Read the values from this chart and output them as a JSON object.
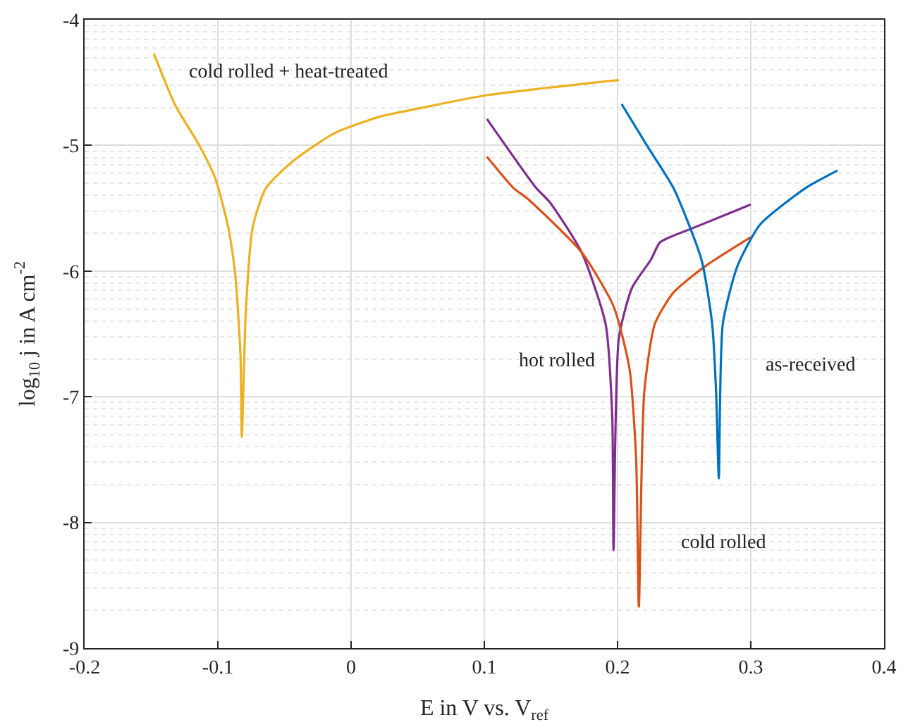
{
  "chart_data": {
    "type": "line",
    "xlabel": "E in V vs. V$_{ref}$",
    "ylabel": "log$_{10}$ j in A cm$^{-2}$",
    "xlim": [
      -0.2,
      0.4
    ],
    "xticks": [
      -0.2,
      -0.1,
      0,
      0.1,
      0.2,
      0.3,
      0.4
    ],
    "ylim": [
      -9,
      -4
    ],
    "yticks": [
      -9,
      -8,
      -7,
      -6,
      -5,
      -4
    ],
    "grid": true,
    "legend": false,
    "marker": "none",
    "line_style": "solid",
    "series": [
      {
        "name": "cold rolled + heat-treated",
        "color": "#edb120",
        "x": [
          -0.148,
          -0.132,
          -0.115,
          -0.102,
          -0.092,
          -0.087,
          -0.083,
          -0.082,
          -0.079,
          -0.074,
          -0.064,
          -0.043,
          -0.012,
          0.022,
          0.049,
          0.102,
          0.201
        ],
        "values": [
          -4.27,
          -4.68,
          -4.98,
          -5.26,
          -5.66,
          -6.02,
          -6.67,
          -7.32,
          -6.32,
          -5.66,
          -5.34,
          -5.12,
          -4.9,
          -4.77,
          -4.71,
          -4.6,
          -4.48
        ]
      },
      {
        "name": "hot rolled",
        "color": "#7e2f8e",
        "x": [
          0.102,
          0.139,
          0.149,
          0.173,
          0.191,
          0.196,
          0.197,
          0.201,
          0.211,
          0.225,
          0.232,
          0.256,
          0.3
        ],
        "values": [
          -4.79,
          -5.34,
          -5.45,
          -5.85,
          -6.42,
          -7.15,
          -8.22,
          -6.53,
          -6.13,
          -5.91,
          -5.77,
          -5.66,
          -5.47
        ]
      },
      {
        "name": "cold rolled",
        "color": "#d95319",
        "x": [
          0.102,
          0.122,
          0.132,
          0.173,
          0.197,
          0.209,
          0.214,
          0.216,
          0.22,
          0.228,
          0.242,
          0.266,
          0.3
        ],
        "values": [
          -5.09,
          -5.34,
          -5.42,
          -5.85,
          -6.28,
          -6.78,
          -7.51,
          -8.67,
          -6.97,
          -6.42,
          -6.17,
          -5.96,
          -5.73
        ]
      },
      {
        "name": "as-received",
        "color": "#0072bd",
        "x": [
          0.203,
          0.222,
          0.242,
          0.263,
          0.271,
          0.274,
          0.276,
          0.279,
          0.29,
          0.307,
          0.341,
          0.365
        ],
        "values": [
          -4.67,
          -5.0,
          -5.34,
          -5.91,
          -6.42,
          -6.97,
          -7.65,
          -6.42,
          -5.96,
          -5.63,
          -5.34,
          -5.2
        ]
      }
    ]
  }
}
